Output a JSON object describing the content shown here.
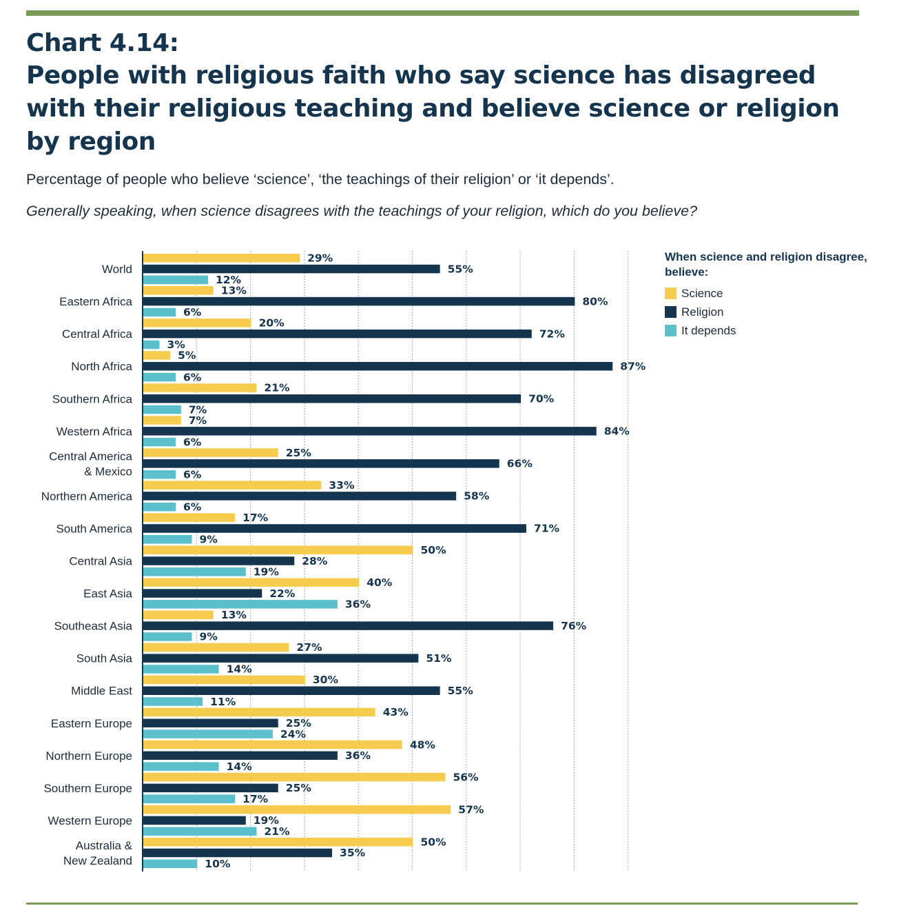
{
  "header": {
    "chart_number": "Chart 4.14:",
    "title": "People with religious faith who say science has disagreed with their religious teaching and believe science or religion by region",
    "subtitle": "Percentage of people who believe ‘science’, ‘the teachings of their religion’ or ‘it depends’.",
    "question": "Generally speaking, when science disagrees with the teachings of your religion, which do you believe?"
  },
  "legend": {
    "title": "When science and religion disagree, believe:",
    "items": [
      "Science",
      "Religion",
      "It depends"
    ]
  },
  "colors": {
    "science": "#f5cc4e",
    "religion": "#15354f",
    "depends": "#5cbfcc",
    "accent_rule": "#7a9a57",
    "gridline": "#9aa6b2"
  },
  "chart_data": {
    "type": "bar",
    "orientation": "horizontal",
    "categories": [
      "World",
      "Eastern Africa",
      "Central Africa",
      "North Africa",
      "Southern Africa",
      "Western Africa",
      "Central America & Mexico",
      "Northern America",
      "South America",
      "Central Asia",
      "East Asia",
      "Southeast Asia",
      "South Asia",
      "Middle East",
      "Eastern Europe",
      "Northern Europe",
      "Southern Europe",
      "Western Europe",
      "Australia & New Zealand"
    ],
    "series": [
      {
        "name": "Science",
        "values": [
          29,
          13,
          20,
          5,
          21,
          7,
          25,
          33,
          17,
          50,
          40,
          13,
          27,
          30,
          43,
          48,
          56,
          57,
          50
        ]
      },
      {
        "name": "Religion",
        "values": [
          55,
          80,
          72,
          87,
          70,
          84,
          66,
          58,
          71,
          28,
          22,
          76,
          51,
          55,
          25,
          36,
          25,
          19,
          35
        ]
      },
      {
        "name": "It depends",
        "values": [
          12,
          6,
          3,
          6,
          7,
          6,
          6,
          6,
          9,
          19,
          36,
          9,
          14,
          11,
          24,
          14,
          17,
          21,
          10
        ]
      }
    ],
    "value_suffix": "%",
    "xlim": [
      0,
      90
    ],
    "grid": true,
    "legend_position": "top-right"
  }
}
